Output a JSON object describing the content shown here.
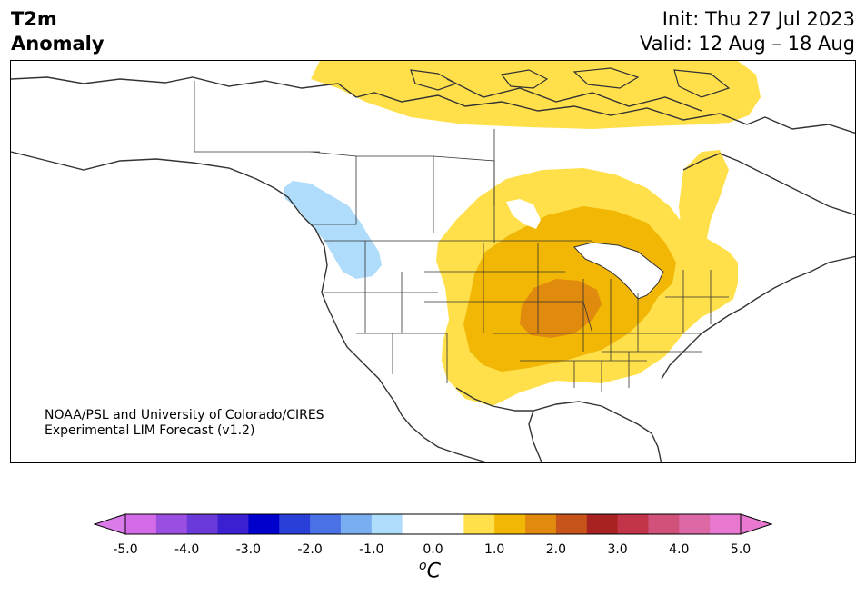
{
  "title": {
    "line1": "T2m",
    "line2": "Anomaly"
  },
  "init": "Init: Thu 27 Jul 2023",
  "valid": "Valid: 12 Aug – 18 Aug",
  "credit": {
    "line1": "NOAA/PSL and University of Colorado/CIRES",
    "line2": "Experimental LIM Forecast (v1.2)"
  },
  "map": {
    "region": "North America",
    "anomalies": [
      {
        "name": "warm-canadian-arctic",
        "sign": "warm",
        "max_level": "0.5 to 1.0"
      },
      {
        "name": "warm-central-us",
        "sign": "warm",
        "max_level": "1.5 to 2.0"
      },
      {
        "name": "cool-pacific-northwest",
        "sign": "cool",
        "max_level": "-1.0 to -0.5"
      }
    ]
  },
  "colorbar": {
    "ticks": [
      "-5.0",
      "-4.0",
      "-3.0",
      "-2.0",
      "-1.0",
      "0.0",
      "1.0",
      "2.0",
      "3.0",
      "4.0",
      "5.0"
    ],
    "unit_symbol": "o",
    "unit_letter": "C",
    "colors": [
      "#d46be8",
      "#9b4fe0",
      "#6a3ad8",
      "#3a20d0",
      "#0000cc",
      "#2a3fd8",
      "#4a72e6",
      "#78aef0",
      "#aedcfa",
      "#ffffff",
      "#ffffff",
      "#ffe04a",
      "#f2b705",
      "#e08a0e",
      "#c7541a",
      "#a82222",
      "#c23448",
      "#d0527a",
      "#dc68a6",
      "#e878d0"
    ],
    "under_color": "#d97be8",
    "over_color": "#e878d0"
  }
}
